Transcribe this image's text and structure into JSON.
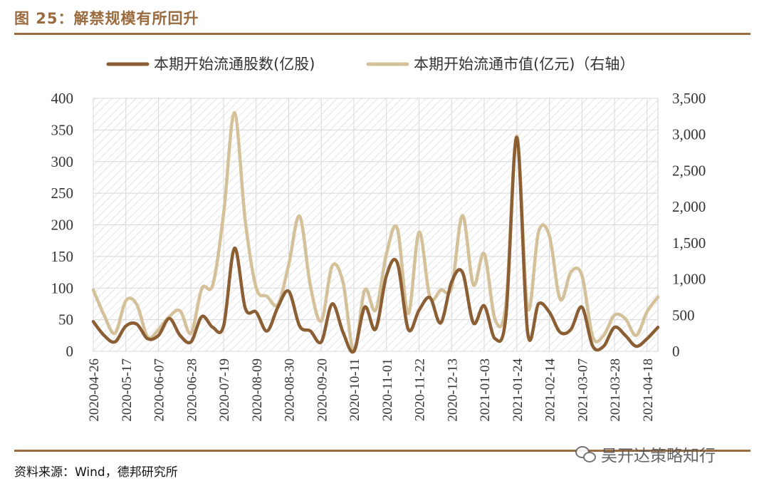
{
  "figure": {
    "title": "图 25：解禁规模有所回升",
    "source": "资料来源：Wind，德邦研究所",
    "watermark": "吴开达策略知行"
  },
  "chart_data": {
    "type": "line",
    "title": "",
    "legend": {
      "placement": "top-center"
    },
    "grid": true,
    "x": [
      "2020-04-26",
      "2020-05-03",
      "2020-05-10",
      "2020-05-17",
      "2020-05-24",
      "2020-05-31",
      "2020-06-07",
      "2020-06-14",
      "2020-06-21",
      "2020-06-28",
      "2020-07-05",
      "2020-07-12",
      "2020-07-19",
      "2020-07-26",
      "2020-08-02",
      "2020-08-09",
      "2020-08-16",
      "2020-08-23",
      "2020-08-30",
      "2020-09-06",
      "2020-09-13",
      "2020-09-20",
      "2020-09-27",
      "2020-10-04",
      "2020-10-11",
      "2020-10-18",
      "2020-10-25",
      "2020-11-01",
      "2020-11-08",
      "2020-11-15",
      "2020-11-22",
      "2020-11-29",
      "2020-12-06",
      "2020-12-13",
      "2020-12-20",
      "2020-12-27",
      "2021-01-03",
      "2021-01-10",
      "2021-01-17",
      "2021-01-24",
      "2021-01-31",
      "2021-02-07",
      "2021-02-14",
      "2021-02-21",
      "2021-02-28",
      "2021-03-07",
      "2021-03-14",
      "2021-03-21",
      "2021-03-28",
      "2021-04-04",
      "2021-04-11",
      "2021-04-18",
      "2021-04-25"
    ],
    "x_tick_labels": [
      "2020-04-26",
      "2020-05-17",
      "2020-06-07",
      "2020-06-28",
      "2020-07-19",
      "2020-08-09",
      "2020-08-30",
      "2020-09-20",
      "2020-10-11",
      "2020-11-01",
      "2020-11-22",
      "2020-12-13",
      "2021-01-03",
      "2021-01-24",
      "2021-02-14",
      "2021-03-07",
      "2021-03-28",
      "2021-04-18"
    ],
    "y_left": {
      "ylim": [
        0,
        400
      ],
      "ticks": [
        "0",
        "50",
        "100",
        "150",
        "200",
        "250",
        "300",
        "350",
        "400"
      ]
    },
    "y_right": {
      "ylim": [
        0,
        3500
      ],
      "ticks": [
        "0",
        "500",
        "1,000",
        "1,500",
        "2,000",
        "2,500",
        "3,000",
        "3,500"
      ]
    },
    "series": [
      {
        "name": "本期开始流通股数(亿股)",
        "axis": "left",
        "color": "#8b5e34",
        "values": [
          47,
          25,
          15,
          40,
          43,
          20,
          25,
          52,
          25,
          15,
          55,
          38,
          40,
          163,
          68,
          62,
          32,
          70,
          95,
          40,
          32,
          15,
          75,
          30,
          0,
          70,
          35,
          120,
          140,
          35,
          65,
          85,
          45,
          110,
          125,
          45,
          72,
          20,
          55,
          338,
          30,
          75,
          62,
          30,
          35,
          70,
          8,
          8,
          38,
          25,
          8,
          20,
          38
        ]
      },
      {
        "name": "本期开始流通市值(亿元)（右轴）",
        "axis": "right",
        "color": "#d4c19a",
        "values": [
          850,
          500,
          250,
          700,
          650,
          200,
          300,
          480,
          560,
          250,
          870,
          920,
          1900,
          3300,
          1800,
          880,
          760,
          650,
          1200,
          1870,
          900,
          420,
          1180,
          950,
          0,
          850,
          570,
          1350,
          1700,
          520,
          1650,
          750,
          850,
          880,
          1880,
          920,
          1350,
          440,
          650,
          2980,
          600,
          1650,
          1600,
          720,
          1100,
          1050,
          200,
          220,
          500,
          450,
          220,
          550,
          750
        ]
      }
    ]
  }
}
